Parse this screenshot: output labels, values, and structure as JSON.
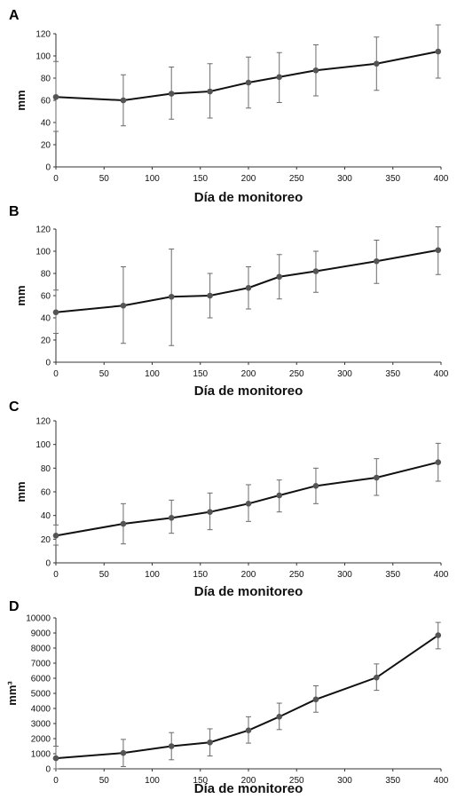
{
  "colors": {
    "line": "#111111",
    "marker": "#555555",
    "error_bar": "#6b6b6b",
    "axis": "#333333"
  },
  "chart_data": [
    {
      "panel": "A",
      "type": "line",
      "xlabel": "Día de monitoreo",
      "ylabel": "mm",
      "xlim": [
        0,
        400
      ],
      "ylim": [
        0,
        120
      ],
      "xticks": [
        0,
        50,
        100,
        150,
        200,
        250,
        300,
        350,
        400
      ],
      "yticks": [
        0,
        20,
        40,
        60,
        80,
        100,
        120
      ],
      "grid": false,
      "x": [
        0,
        70,
        120,
        160,
        200,
        232,
        270,
        333,
        397
      ],
      "series": [
        {
          "values": [
            63,
            60,
            66,
            68,
            76,
            81,
            87,
            93,
            104
          ],
          "error_low": [
            32,
            37,
            43,
            44,
            53,
            58,
            64,
            69,
            80
          ],
          "error_high": [
            95,
            83,
            90,
            93,
            99,
            103,
            110,
            117,
            128
          ]
        }
      ]
    },
    {
      "panel": "B",
      "type": "line",
      "xlabel": "Día de monitoreo",
      "ylabel": "mm",
      "xlim": [
        0,
        400
      ],
      "ylim": [
        0,
        120
      ],
      "xticks": [
        0,
        50,
        100,
        150,
        200,
        250,
        300,
        350,
        400
      ],
      "yticks": [
        0,
        20,
        40,
        60,
        80,
        100,
        120
      ],
      "grid": false,
      "x": [
        0,
        70,
        120,
        160,
        200,
        232,
        270,
        333,
        397
      ],
      "series": [
        {
          "values": [
            45,
            51,
            59,
            60,
            67,
            77,
            82,
            91,
            101
          ],
          "error_low": [
            26,
            17,
            15,
            40,
            48,
            57,
            63,
            71,
            79
          ],
          "error_high": [
            65,
            86,
            102,
            80,
            86,
            97,
            100,
            110,
            122
          ]
        }
      ]
    },
    {
      "panel": "C",
      "type": "line",
      "xlabel": "Día de monitoreo",
      "ylabel": "mm",
      "xlim": [
        0,
        400
      ],
      "ylim": [
        0,
        120
      ],
      "xticks": [
        0,
        50,
        100,
        150,
        200,
        250,
        300,
        350,
        400
      ],
      "yticks": [
        0,
        20,
        40,
        60,
        80,
        100,
        120
      ],
      "grid": false,
      "x": [
        0,
        70,
        120,
        160,
        200,
        232,
        270,
        333,
        397
      ],
      "series": [
        {
          "values": [
            23,
            33,
            38,
            43,
            50,
            57,
            65,
            72,
            85
          ],
          "error_low": [
            15,
            16,
            25,
            28,
            35,
            43,
            50,
            57,
            69
          ],
          "error_high": [
            32,
            50,
            53,
            59,
            66,
            70,
            80,
            88,
            101
          ]
        }
      ]
    },
    {
      "panel": "D",
      "type": "line",
      "xlabel": "Día de monitoreo",
      "ylabel": "mm³",
      "xlim": [
        0,
        400
      ],
      "ylim": [
        0,
        10000
      ],
      "xticks": [
        0,
        50,
        100,
        150,
        200,
        250,
        300,
        350,
        400
      ],
      "yticks": [
        0,
        1000,
        2000,
        3000,
        4000,
        5000,
        6000,
        7000,
        8000,
        9000,
        10000
      ],
      "grid": false,
      "x": [
        0,
        70,
        120,
        160,
        200,
        232,
        270,
        333,
        397
      ],
      "series": [
        {
          "values": [
            700,
            1050,
            1500,
            1750,
            2550,
            3450,
            4600,
            6050,
            8850
          ],
          "error_low": [
            0,
            150,
            600,
            850,
            1700,
            2600,
            3750,
            5200,
            7950
          ],
          "error_high": [
            1500,
            1950,
            2400,
            2650,
            3450,
            4350,
            5500,
            6950,
            9700
          ]
        }
      ]
    }
  ]
}
